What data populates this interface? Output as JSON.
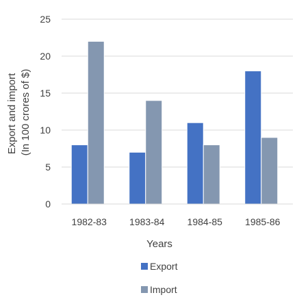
{
  "chart_data": {
    "type": "bar",
    "title": "",
    "xlabel": "Years",
    "ylabel_lines": [
      "Export and import",
      "(In 100 crores of $)"
    ],
    "categories": [
      "1982-83",
      "1983-84",
      "1984-85",
      "1985-86"
    ],
    "series": [
      {
        "name": "Export",
        "color": "#4472c4",
        "values": [
          8,
          7,
          11,
          18
        ]
      },
      {
        "name": "Import",
        "color": "#8497b0",
        "values": [
          22,
          14,
          8,
          9
        ]
      }
    ],
    "ylim": [
      0,
      25
    ],
    "yticks": [
      "0",
      "5",
      "10",
      "15",
      "20",
      "25"
    ],
    "yticks_values": [
      0,
      5,
      10,
      15,
      20,
      25
    ],
    "grid": true,
    "legend_position": "bottom"
  }
}
